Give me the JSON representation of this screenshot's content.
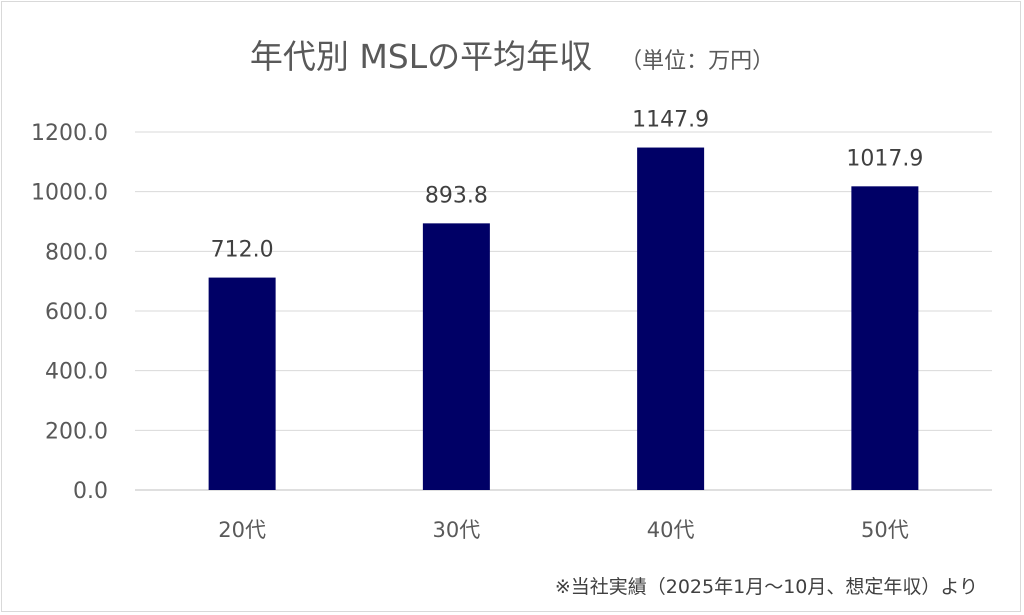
{
  "chart_data": {
    "type": "bar",
    "title": "年代別 MSLの平均年収",
    "subtitle": "（単位：万円）",
    "categories": [
      "20代",
      "30代",
      "40代",
      "50代"
    ],
    "values": [
      712.0,
      893.8,
      1147.9,
      1017.9
    ],
    "data_labels": [
      "712.0",
      "893.8",
      "1147.9",
      "1017.9"
    ],
    "xlabel": "",
    "ylabel": "",
    "ylim": [
      0,
      1200
    ],
    "yticks": [
      "0.0",
      "200.0",
      "400.0",
      "600.0",
      "800.0",
      "1000.0",
      "1200.0"
    ],
    "grid": true,
    "bar_color": "#000066",
    "footnote": "※当社実績（2025年1月～10月、想定年収）より"
  }
}
